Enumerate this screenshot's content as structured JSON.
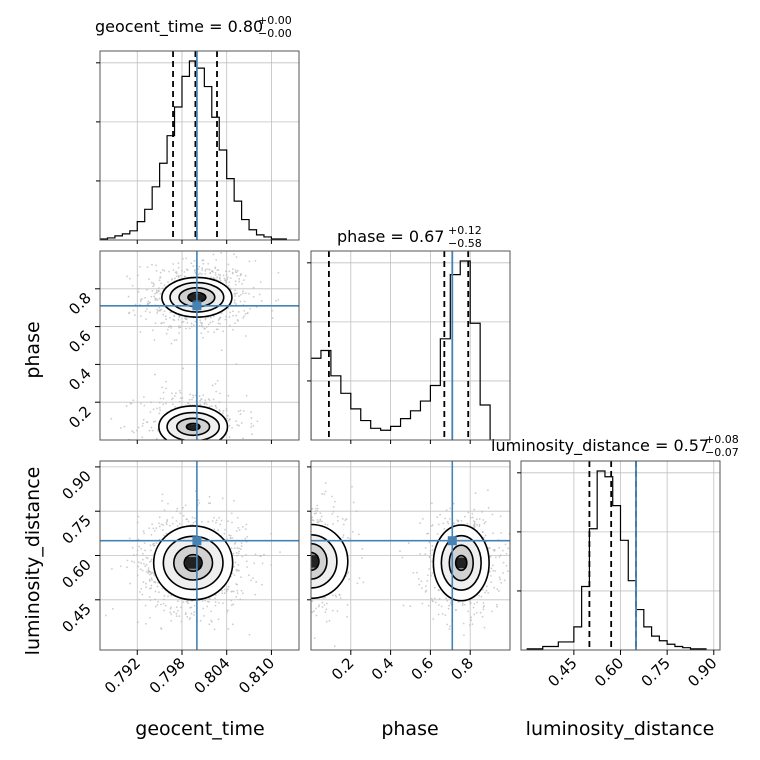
{
  "colors": {
    "truth": "#4682b4",
    "contour": "#000000",
    "grid": "#c0c0c0",
    "scatter": "#b8b8b8"
  },
  "chart_data": {
    "type": "corner",
    "parameters": [
      "geocent_time",
      "phase",
      "luminosity_distance"
    ],
    "truths": {
      "geocent_time": 0.8,
      "phase": 0.71,
      "luminosity_distance": 0.65
    },
    "ranges": {
      "geocent_time": [
        0.787,
        0.8137
      ],
      "phase": [
        0.0,
        1.0
      ],
      "luminosity_distance": [
        0.28,
        0.92
      ]
    },
    "ticks": {
      "geocent_time": [
        "0.792",
        "0.798",
        "0.804",
        "0.810"
      ],
      "phase": [
        "0.2",
        "0.4",
        "0.6",
        "0.8"
      ],
      "luminosity_distance": [
        "0.45",
        "0.60",
        "0.75",
        "0.90"
      ]
    },
    "titles": {
      "geocent_time": {
        "label": "geocent_time = 0.80",
        "plus": "+0.00",
        "minus": "−0.00"
      },
      "phase": {
        "label": "phase = 0.67",
        "plus": "+0.12",
        "minus": "−0.58"
      },
      "luminosity_distance": {
        "label": "luminosity_distance = 0.57",
        "plus": "+0.08",
        "minus": "−0.07"
      }
    },
    "quantiles": {
      "geocent_time": [
        0.7968,
        0.7998,
        0.8027
      ],
      "phase": [
        0.09,
        0.67,
        0.79
      ],
      "luminosity_distance": [
        0.5,
        0.57,
        0.65
      ]
    },
    "histograms": {
      "geocent_time": {
        "edges": [
          0.787,
          0.788,
          0.789,
          0.79,
          0.791,
          0.792,
          0.793,
          0.794,
          0.795,
          0.796,
          0.797,
          0.798,
          0.799,
          0.8,
          0.801,
          0.802,
          0.803,
          0.804,
          0.805,
          0.806,
          0.807,
          0.808,
          0.809,
          0.81,
          0.811,
          0.812
        ],
        "counts": [
          1,
          2,
          4,
          6,
          9,
          18,
          30,
          52,
          75,
          102,
          130,
          160,
          175,
          168,
          150,
          120,
          88,
          60,
          38,
          20,
          10,
          5,
          3,
          1,
          1
        ]
      },
      "phase": {
        "edges": [
          0.0,
          0.05,
          0.1,
          0.15,
          0.2,
          0.25,
          0.3,
          0.35,
          0.4,
          0.45,
          0.5,
          0.55,
          0.6,
          0.65,
          0.7,
          0.75,
          0.8,
          0.85,
          0.9
        ],
        "counts": [
          42,
          46,
          33,
          24,
          16,
          10,
          6,
          5,
          7,
          11,
          15,
          20,
          28,
          52,
          85,
          92,
          60,
          18
        ]
      },
      "luminosity_distance": {
        "edges": [
          0.3,
          0.35,
          0.4,
          0.45,
          0.475,
          0.5,
          0.525,
          0.55,
          0.575,
          0.6,
          0.625,
          0.65,
          0.675,
          0.7,
          0.725,
          0.75,
          0.775,
          0.8,
          0.825,
          0.85,
          0.875
        ],
        "counts": [
          1,
          3,
          7,
          20,
          55,
          105,
          155,
          150,
          125,
          95,
          60,
          35,
          20,
          12,
          8,
          5,
          3,
          2,
          1,
          1
        ]
      }
    },
    "samples_2d": {
      "phase_vs_geocent_time": {
        "x": "geocent_time",
        "y": "phase",
        "modes": [
          {
            "cx": 0.8,
            "cy": 0.755,
            "sx": 0.0028,
            "sy": 0.075,
            "n": 650
          },
          {
            "cx": 0.7995,
            "cy": 0.09,
            "sx": 0.0027,
            "sy": 0.07,
            "n": 380
          }
        ],
        "contours": [
          {
            "cx": 0.8,
            "cy": 0.755,
            "rx": [
              0.0012,
              0.0024,
              0.0036,
              0.0047
            ],
            "ry": [
              0.025,
              0.05,
              0.078,
              0.105
            ]
          },
          {
            "cx": 0.7995,
            "cy": 0.07,
            "rx": [
              0.0009,
              0.0022,
              0.0035,
              0.0046
            ],
            "ry": [
              0.018,
              0.045,
              0.075,
              0.11
            ]
          }
        ]
      },
      "luminosity_distance_vs_geocent_time": {
        "x": "geocent_time",
        "y": "luminosity_distance",
        "modes": [
          {
            "cx": 0.7995,
            "cy": 0.575,
            "sx": 0.0028,
            "sy": 0.065,
            "n": 950
          }
        ],
        "contours": [
          {
            "cx": 0.7995,
            "cy": 0.575,
            "rx": [
              0.0012,
              0.0026,
              0.004,
              0.0053
            ],
            "ry": [
              0.028,
              0.058,
              0.09,
              0.125
            ]
          }
        ]
      },
      "luminosity_distance_vs_phase": {
        "x": "phase",
        "y": "luminosity_distance",
        "modes": [
          {
            "cx": 0.76,
            "cy": 0.575,
            "sx": 0.075,
            "sy": 0.065,
            "n": 650
          },
          {
            "cx": 0.04,
            "cy": 0.575,
            "sx": 0.07,
            "sy": 0.07,
            "n": 380
          }
        ],
        "contours": [
          {
            "cx": 0.755,
            "cy": 0.575,
            "rx": [
              0.028,
              0.06,
              0.1,
              0.14
            ],
            "ry": [
              0.025,
              0.06,
              0.092,
              0.128
            ]
          },
          {
            "cx": 0.0,
            "cy": 0.58,
            "rx": [
              0.04,
              0.08,
              0.13,
              0.185
            ],
            "ry": [
              0.03,
              0.06,
              0.09,
              0.125
            ]
          }
        ]
      }
    }
  }
}
